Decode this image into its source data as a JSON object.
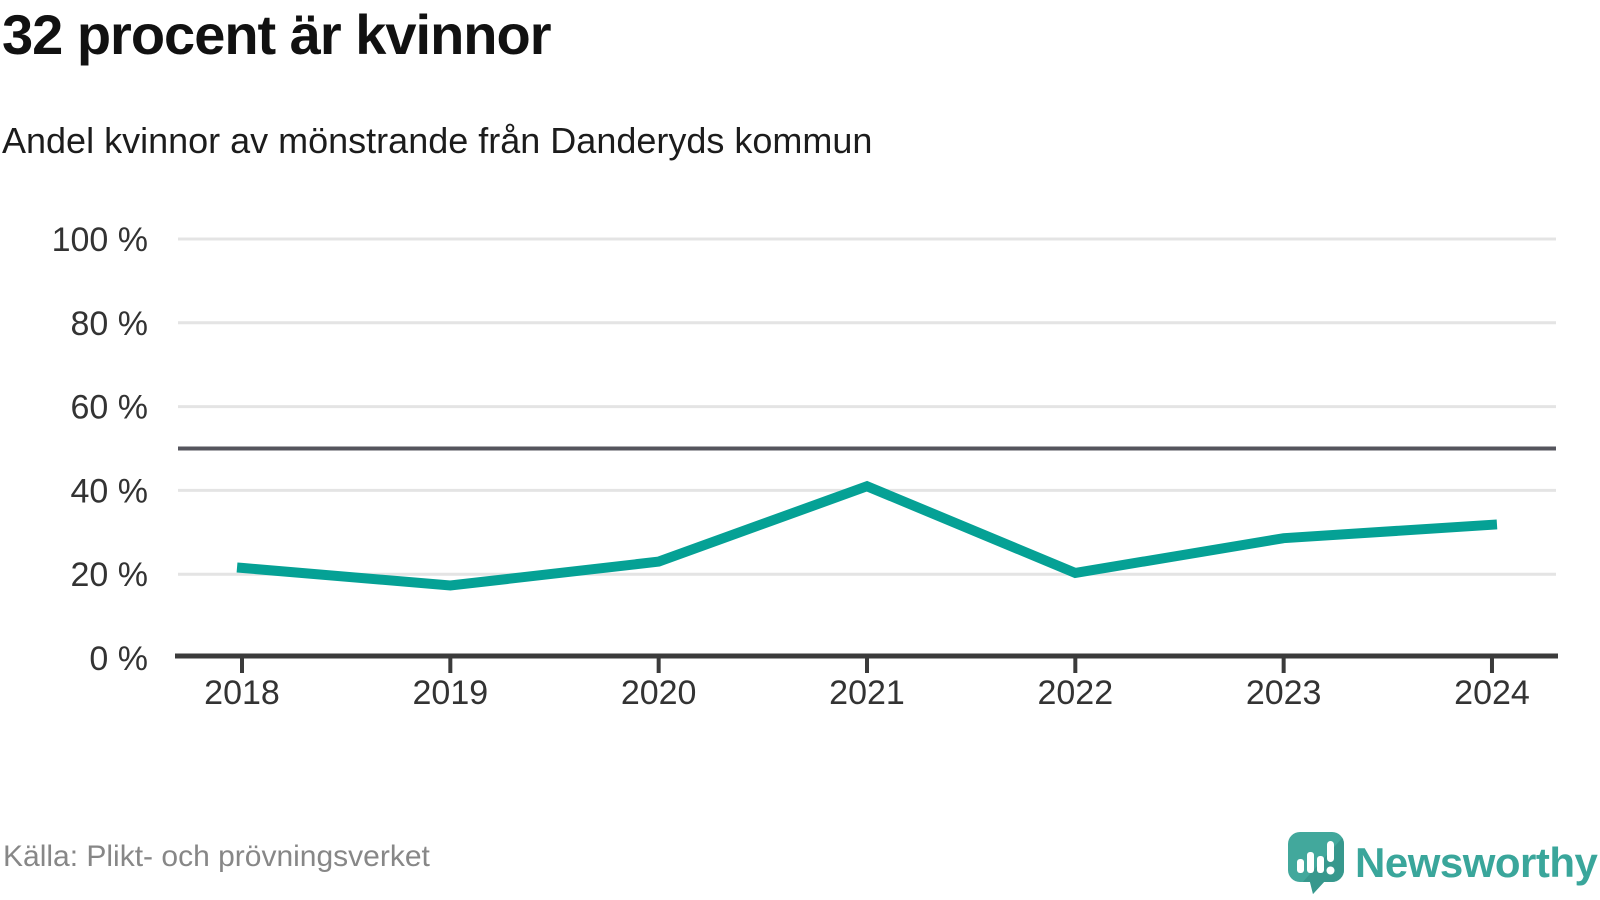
{
  "header": {
    "title": "32 procent är kvinnor",
    "subtitle": "Andel kvinnor av mönstrande från Danderyds kommun"
  },
  "footer": {
    "source": "Källa: Plikt- och prövningsverket",
    "brand": "Newsworthy"
  },
  "chart_data": {
    "type": "line",
    "title": "32 procent är kvinnor",
    "subtitle": "Andel kvinnor av mönstrande från Danderyds kommun",
    "categories": [
      "2018",
      "2019",
      "2020",
      "2021",
      "2022",
      "2023",
      "2024"
    ],
    "series": [
      {
        "name": "Andel kvinnor av mönstrande",
        "values": [
          21.5,
          17.3,
          23.0,
          41.0,
          20.3,
          28.6,
          31.8
        ]
      }
    ],
    "ylim": [
      0,
      100
    ],
    "yticks": [
      0,
      20,
      40,
      60,
      80,
      100
    ],
    "ytick_suffix": " %",
    "reference_line": 50,
    "grid": true,
    "legend_position": "none",
    "colors": {
      "line": "#05a195",
      "grid": "#e4e4e4",
      "reference": "#55555d",
      "axis": "#3b3b3b",
      "tick_label": "#333333",
      "brand": "#3aa69b"
    }
  }
}
